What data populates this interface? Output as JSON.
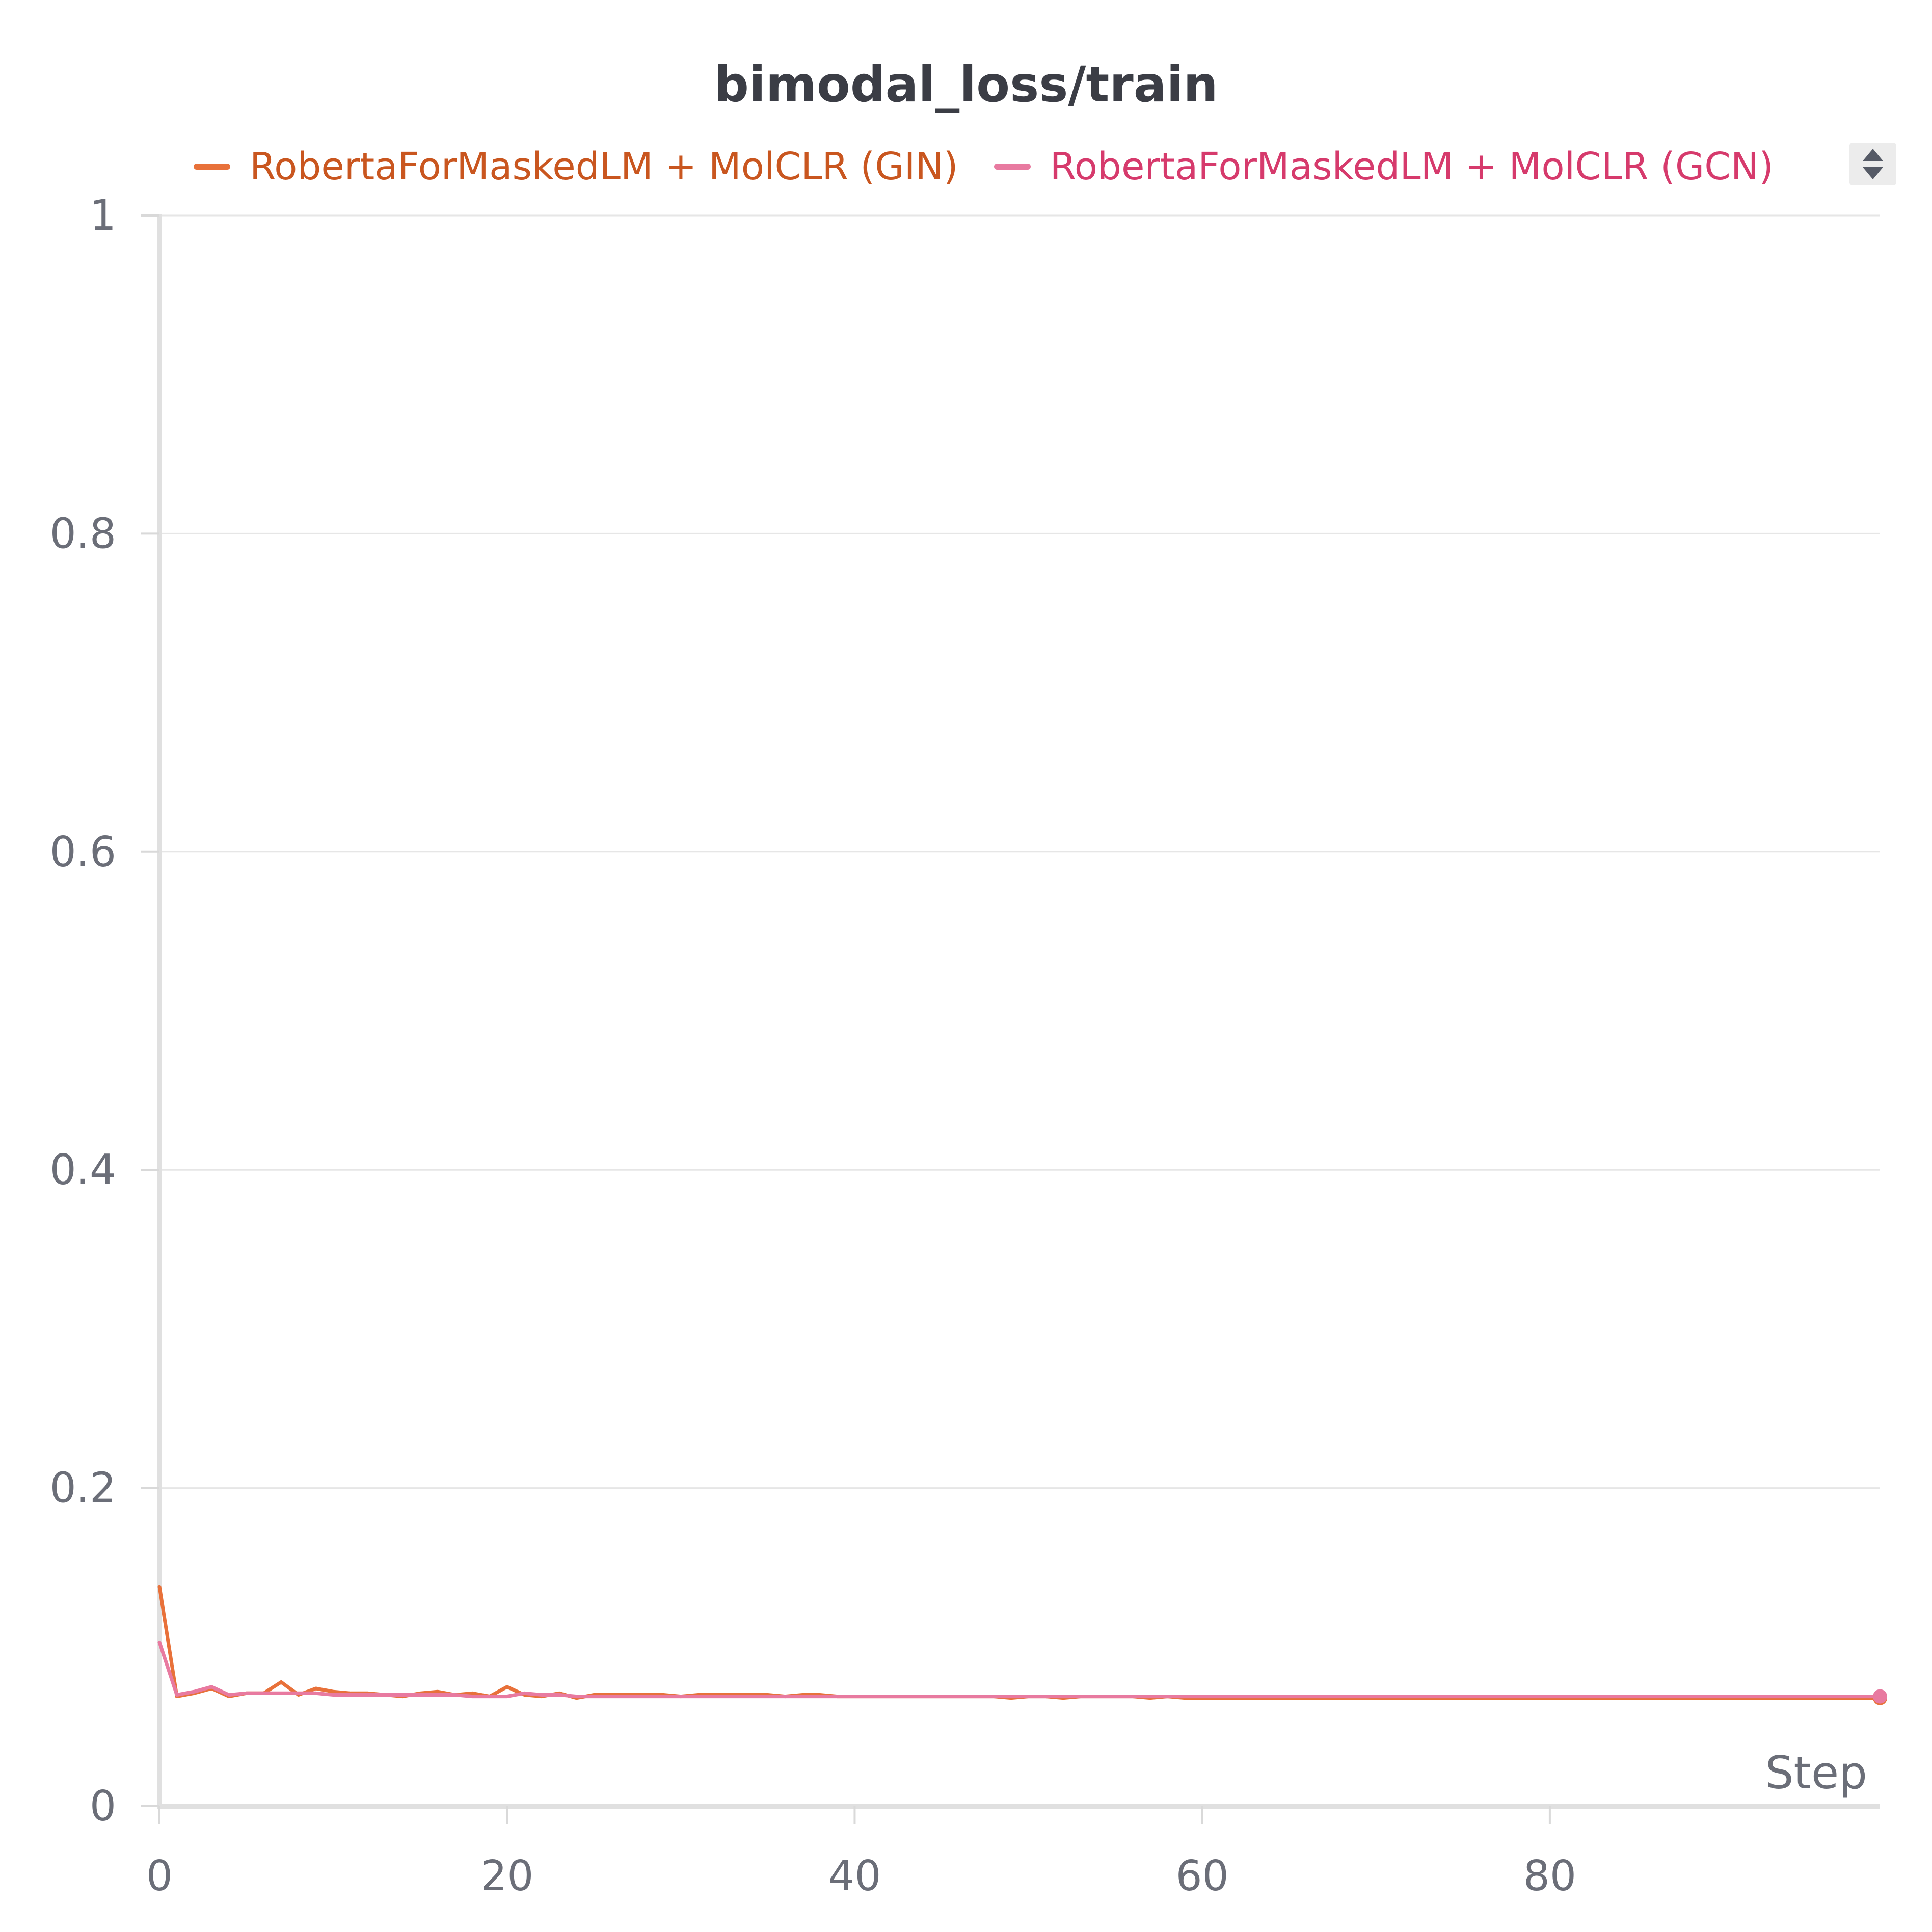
{
  "chart_data": {
    "type": "line",
    "title": "bimodal_loss/train",
    "xlabel": "Step",
    "ylabel": "",
    "xlim": [
      0,
      99
    ],
    "ylim": [
      0,
      1
    ],
    "x_ticks": [
      0,
      20,
      40,
      60,
      80
    ],
    "y_ticks": [
      0,
      0.2,
      0.4,
      0.6,
      0.8,
      1
    ],
    "y_tick_labels": [
      "0",
      "0.2",
      "0.4",
      "0.6",
      "0.8",
      "1"
    ],
    "grid": true,
    "legend_position": "top",
    "series": [
      {
        "name": "RobertaForMaskedLM + MolCLR (GIN)",
        "color": "#e8713a",
        "label_color": "#c9561f",
        "x": [
          0,
          1,
          2,
          3,
          4,
          5,
          6,
          7,
          8,
          9,
          10,
          11,
          12,
          13,
          14,
          15,
          16,
          17,
          18,
          19,
          20,
          21,
          22,
          23,
          24,
          25,
          26,
          27,
          28,
          29,
          30,
          31,
          32,
          33,
          34,
          35,
          36,
          37,
          38,
          39,
          40,
          41,
          42,
          43,
          44,
          45,
          46,
          47,
          48,
          49,
          50,
          51,
          52,
          53,
          54,
          55,
          56,
          57,
          58,
          59,
          60,
          61,
          62,
          63,
          64,
          65,
          66,
          67,
          68,
          69,
          70,
          71,
          72,
          73,
          74,
          75,
          76,
          77,
          78,
          79,
          80,
          81,
          82,
          83,
          84,
          85,
          86,
          87,
          88,
          89,
          90,
          91,
          92,
          93,
          94,
          95,
          96,
          97,
          98,
          99
        ],
        "values": [
          0.138,
          0.069,
          0.071,
          0.074,
          0.069,
          0.071,
          0.071,
          0.078,
          0.07,
          0.074,
          0.072,
          0.071,
          0.071,
          0.07,
          0.069,
          0.071,
          0.072,
          0.07,
          0.071,
          0.069,
          0.075,
          0.07,
          0.069,
          0.071,
          0.068,
          0.07,
          0.07,
          0.07,
          0.07,
          0.07,
          0.069,
          0.07,
          0.07,
          0.07,
          0.07,
          0.07,
          0.069,
          0.07,
          0.07,
          0.069,
          0.069,
          0.069,
          0.069,
          0.069,
          0.069,
          0.069,
          0.069,
          0.069,
          0.069,
          0.068,
          0.069,
          0.069,
          0.068,
          0.069,
          0.069,
          0.069,
          0.069,
          0.068,
          0.069,
          0.068,
          0.068,
          0.068,
          0.068,
          0.068,
          0.068,
          0.068,
          0.068,
          0.068,
          0.068,
          0.068,
          0.068,
          0.068,
          0.068,
          0.068,
          0.068,
          0.068,
          0.068,
          0.068,
          0.068,
          0.068,
          0.068,
          0.068,
          0.068,
          0.068,
          0.068,
          0.068,
          0.068,
          0.068,
          0.068,
          0.068,
          0.068,
          0.068,
          0.068,
          0.068,
          0.068,
          0.068,
          0.068,
          0.068,
          0.068,
          0.068
        ]
      },
      {
        "name": "RobertaForMaskedLM + MolCLR (GCN)",
        "color": "#e87aa0",
        "label_color": "#d63a6c",
        "x": [
          0,
          1,
          2,
          3,
          4,
          5,
          6,
          7,
          8,
          9,
          10,
          11,
          12,
          13,
          14,
          15,
          16,
          17,
          18,
          19,
          20,
          21,
          22,
          23,
          24,
          25,
          26,
          27,
          28,
          29,
          30,
          31,
          32,
          33,
          34,
          35,
          36,
          37,
          38,
          39,
          40,
          41,
          42,
          43,
          44,
          45,
          46,
          47,
          48,
          49,
          50,
          51,
          52,
          53,
          54,
          55,
          56,
          57,
          58,
          59,
          60,
          61,
          62,
          63,
          64,
          65,
          66,
          67,
          68,
          69,
          70,
          71,
          72,
          73,
          74,
          75,
          76,
          77,
          78,
          79,
          80,
          81,
          82,
          83,
          84,
          85,
          86,
          87,
          88,
          89,
          90,
          91,
          92,
          93,
          94,
          95,
          96,
          97,
          98,
          99
        ],
        "values": [
          0.103,
          0.07,
          0.072,
          0.075,
          0.07,
          0.071,
          0.071,
          0.071,
          0.071,
          0.071,
          0.07,
          0.07,
          0.07,
          0.07,
          0.07,
          0.07,
          0.07,
          0.07,
          0.069,
          0.069,
          0.069,
          0.071,
          0.07,
          0.07,
          0.069,
          0.069,
          0.069,
          0.069,
          0.069,
          0.069,
          0.069,
          0.069,
          0.069,
          0.069,
          0.069,
          0.069,
          0.069,
          0.069,
          0.069,
          0.069,
          0.069,
          0.069,
          0.069,
          0.069,
          0.069,
          0.069,
          0.069,
          0.069,
          0.069,
          0.069,
          0.069,
          0.069,
          0.069,
          0.069,
          0.069,
          0.069,
          0.069,
          0.069,
          0.069,
          0.069,
          0.069,
          0.069,
          0.069,
          0.069,
          0.069,
          0.069,
          0.069,
          0.069,
          0.069,
          0.069,
          0.069,
          0.069,
          0.069,
          0.069,
          0.069,
          0.069,
          0.069,
          0.069,
          0.069,
          0.069,
          0.069,
          0.069,
          0.069,
          0.069,
          0.069,
          0.069,
          0.069,
          0.069,
          0.069,
          0.069,
          0.069,
          0.069,
          0.069,
          0.069,
          0.069,
          0.069,
          0.069,
          0.069,
          0.069,
          0.069
        ]
      }
    ]
  }
}
